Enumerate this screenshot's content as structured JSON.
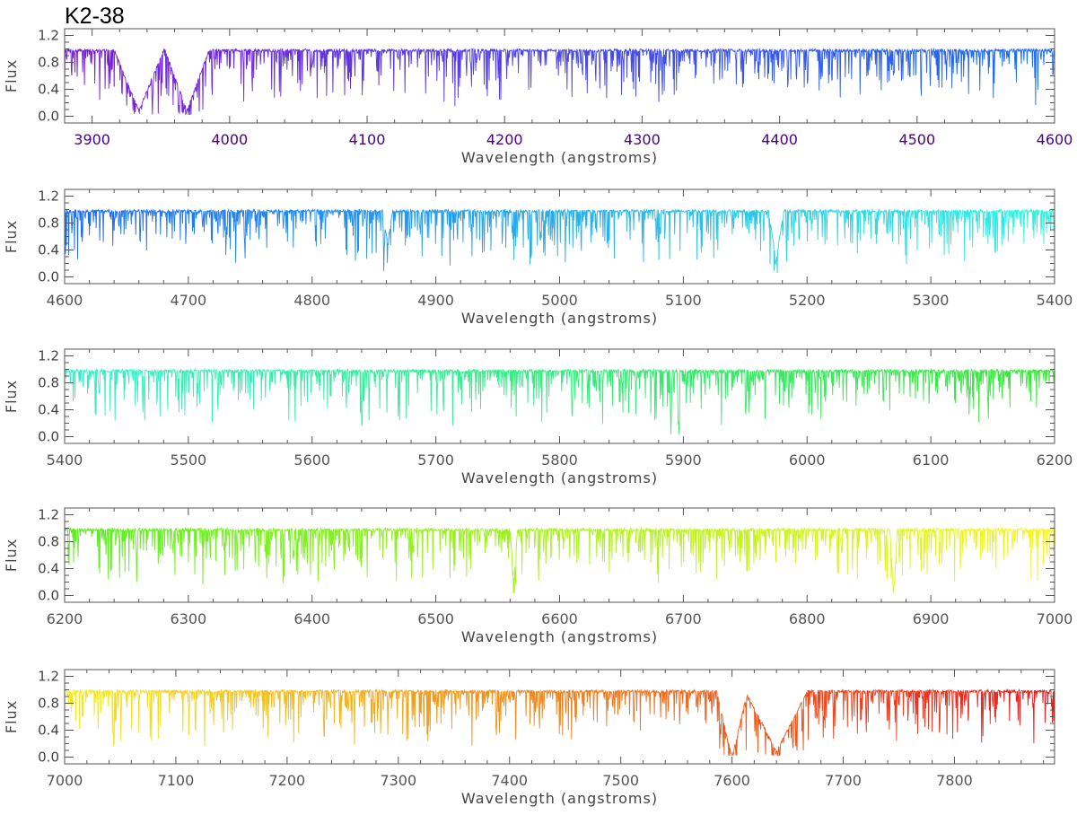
{
  "title": "K2-38",
  "chart_data": [
    {
      "type": "line",
      "xlim": [
        3880,
        4600
      ],
      "ylim": [
        -0.1,
        1.3
      ],
      "xticks": [
        "3900",
        "4000",
        "4100",
        "4200",
        "4300",
        "4400",
        "4500",
        "4600"
      ],
      "yticks": [
        "0.0",
        "0.4",
        "0.8",
        "1.2"
      ],
      "xlabel": "Wavelength (angstroms)",
      "ylabel": "Flux",
      "tick_color": "#4b0082",
      "color_range": [
        "#7a1fd6",
        "#1f6ef0"
      ],
      "continuum": 0.98,
      "features": [
        {
          "x": 3934,
          "depth": 0.9,
          "width": 18
        },
        {
          "x": 3969,
          "depth": 0.9,
          "width": 16
        }
      ]
    },
    {
      "type": "line",
      "xlim": [
        4600,
        5400
      ],
      "ylim": [
        -0.1,
        1.3
      ],
      "xticks": [
        "4600",
        "4700",
        "4800",
        "4900",
        "5000",
        "5100",
        "5200",
        "5300",
        "5400"
      ],
      "yticks": [
        "0.0",
        "0.4",
        "0.8",
        "1.2"
      ],
      "xlabel": "Wavelength (angstroms)",
      "ylabel": "Flux",
      "tick_color": "#555555",
      "color_range": [
        "#1f6ef0",
        "#34f0e0"
      ],
      "continuum": 0.98,
      "features": [
        {
          "x": 4861,
          "depth": 0.5,
          "width": 4
        },
        {
          "x": 5175,
          "depth": 0.75,
          "width": 6
        }
      ]
    },
    {
      "type": "line",
      "xlim": [
        5400,
        6200
      ],
      "ylim": [
        -0.1,
        1.3
      ],
      "xticks": [
        "5400",
        "5500",
        "5600",
        "5700",
        "5800",
        "5900",
        "6000",
        "6100",
        "6200"
      ],
      "yticks": [
        "0.0",
        "0.4",
        "0.8",
        "1.2"
      ],
      "xlabel": "Wavelength (angstroms)",
      "ylabel": "Flux",
      "tick_color": "#555555",
      "color_range": [
        "#34f0c8",
        "#3ae83a"
      ],
      "continuum": 0.98,
      "features": [
        {
          "x": 5890,
          "depth": 0.95,
          "width": 1
        },
        {
          "x": 5896,
          "depth": 0.95,
          "width": 1
        }
      ]
    },
    {
      "type": "line",
      "xlim": [
        6200,
        7000
      ],
      "ylim": [
        -0.1,
        1.3
      ],
      "xticks": [
        "6200",
        "6300",
        "6400",
        "6500",
        "6600",
        "6700",
        "6800",
        "6900",
        "7000"
      ],
      "yticks": [
        "0.0",
        "0.4",
        "0.8",
        "1.2"
      ],
      "xlabel": "Wavelength (angstroms)",
      "ylabel": "Flux",
      "tick_color": "#555555",
      "color_range": [
        "#5ef020",
        "#f5f520"
      ],
      "continuum": 0.98,
      "features": [
        {
          "x": 6563,
          "depth": 0.75,
          "width": 3
        },
        {
          "x": 6870,
          "depth": 0.95,
          "width": 3
        }
      ]
    },
    {
      "type": "line",
      "xlim": [
        7000,
        7890
      ],
      "ylim": [
        -0.1,
        1.3
      ],
      "xticks": [
        "7000",
        "7100",
        "7200",
        "7300",
        "7400",
        "7500",
        "7600",
        "7700",
        "7800"
      ],
      "yticks": [
        "0.0",
        "0.4",
        "0.8",
        "1.2"
      ],
      "xlabel": "Wavelength (angstroms)",
      "ylabel": "Flux",
      "tick_color": "#555555",
      "color_range": [
        "#f5e820",
        "#e82020"
      ],
      "continuum": 0.98,
      "features": [
        {
          "x": 7600,
          "depth": 0.98,
          "width": 14
        },
        {
          "x": 7640,
          "depth": 0.9,
          "width": 28
        }
      ]
    }
  ]
}
